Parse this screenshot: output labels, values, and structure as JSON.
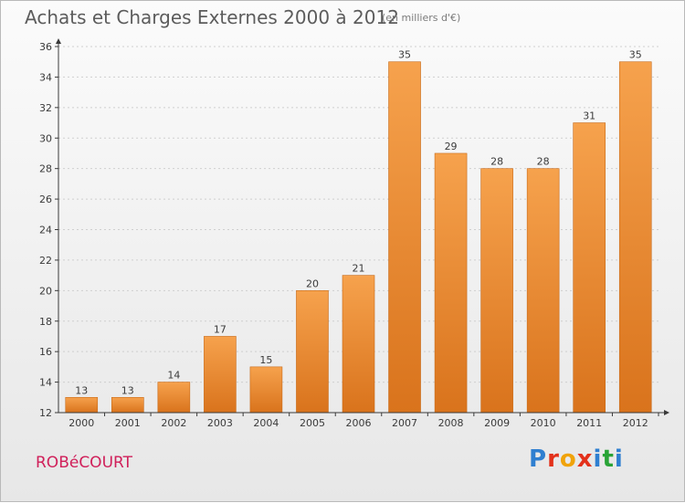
{
  "header": {
    "title": "Achats et Charges Externes 2000 à 2012",
    "subtitle": "(en milliers d'€)"
  },
  "footer": {
    "commune": "ROBéCOURT",
    "brand": "Proxiti",
    "brand_colors": [
      "#2f7fd0",
      "#e3311b",
      "#f0a30a",
      "#e3311b",
      "#2f7fd0",
      "#29a336",
      "#2f7fd0"
    ]
  },
  "colors": {
    "bar_top": "#f6a24d",
    "bar_bottom": "#d9731c",
    "bar_edge": "#c86a18",
    "axis": "#3a3a3a",
    "grid": "#cfcfcf",
    "commune": "#d0205a"
  },
  "chart_data": {
    "type": "bar",
    "title": "Achats et Charges Externes 2000 à 2012",
    "subtitle": "(en milliers d'€)",
    "categories": [
      "2000",
      "2001",
      "2002",
      "2003",
      "2004",
      "2005",
      "2006",
      "2007",
      "2008",
      "2009",
      "2010",
      "2011",
      "2012"
    ],
    "values": [
      13,
      13,
      14,
      17,
      15,
      20,
      21,
      35,
      29,
      28,
      28,
      31,
      35
    ],
    "value_labels": [
      "13",
      "13",
      "14",
      "17",
      "15",
      "20",
      "21",
      "35",
      "29",
      "28",
      "28",
      "31",
      "35"
    ],
    "ylim": [
      12,
      36
    ],
    "yticks": [
      12,
      14,
      16,
      18,
      20,
      22,
      24,
      26,
      28,
      30,
      32,
      34,
      36
    ],
    "grid": true,
    "xlabel": "",
    "ylabel": ""
  }
}
